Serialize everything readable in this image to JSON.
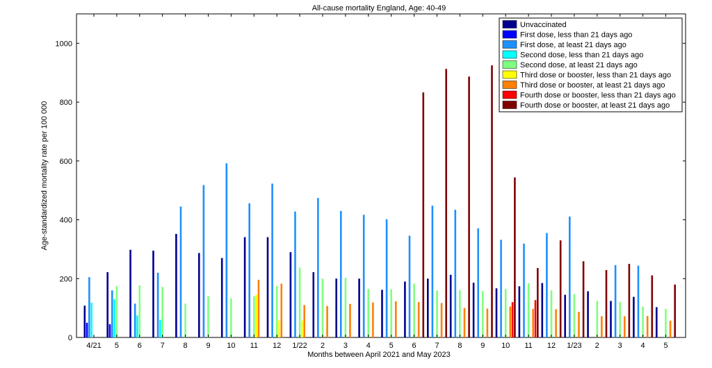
{
  "chart_data": {
    "type": "bar",
    "title": "All-cause mortality England, Age: 40-49",
    "xlabel": "Months between April 2021 and May 2023",
    "ylabel": "Age-standardized mortality rate per 100 000",
    "ylim": [
      0,
      1100
    ],
    "yticks": [
      0,
      200,
      400,
      600,
      800,
      1000
    ],
    "grid": false,
    "legend_position": "top-right",
    "categories": [
      "4/21",
      "5",
      "6",
      "7",
      "8",
      "9",
      "10",
      "11",
      "12",
      "1/22",
      "2",
      "3",
      "4",
      "5",
      "6",
      "7",
      "8",
      "9",
      "10",
      "11",
      "12",
      "1/23",
      "2",
      "3",
      "4",
      "5"
    ],
    "series": [
      {
        "name": "Unvaccinated",
        "color": "#00008f",
        "values": [
          108,
          222,
          298,
          295,
          352,
          287,
          270,
          341,
          341,
          290,
          222,
          200,
          200,
          162,
          190,
          200,
          213,
          186,
          167,
          174,
          185,
          145,
          157,
          124,
          138,
          103
        ]
      },
      {
        "name": "First dose, less than 21 days ago",
        "color": "#0000ff",
        "values": [
          50,
          45,
          null,
          null,
          null,
          null,
          null,
          null,
          null,
          null,
          null,
          null,
          null,
          null,
          null,
          null,
          null,
          null,
          null,
          null,
          null,
          null,
          null,
          null,
          null,
          null
        ]
      },
      {
        "name": "First dose, at least 21 days ago",
        "color": "#1e90ff",
        "values": [
          205,
          160,
          115,
          220,
          445,
          518,
          592,
          456,
          523,
          428,
          474,
          430,
          417,
          402,
          346,
          448,
          434,
          371,
          332,
          319,
          355,
          411,
          null,
          246,
          244,
          null
        ]
      },
      {
        "name": "Second dose, less than 21 days ago",
        "color": "#00ffff",
        "values": [
          118,
          130,
          75,
          60,
          null,
          null,
          null,
          null,
          null,
          null,
          null,
          null,
          null,
          null,
          null,
          null,
          null,
          null,
          null,
          null,
          null,
          null,
          null,
          null,
          null,
          null
        ]
      },
      {
        "name": "Second dose, at least 21 days ago",
        "color": "#7fff7f",
        "values": [
          null,
          175,
          177,
          172,
          115,
          140,
          133,
          140,
          175,
          238,
          200,
          203,
          165,
          164,
          183,
          160,
          161,
          158,
          165,
          184,
          160,
          147,
          124,
          121,
          105,
          97
        ]
      },
      {
        "name": "Third dose or booster, less than 21 days ago",
        "color": "#ffff00",
        "values": [
          null,
          null,
          null,
          null,
          null,
          null,
          null,
          145,
          58,
          58,
          null,
          null,
          null,
          null,
          null,
          null,
          null,
          null,
          null,
          null,
          null,
          null,
          null,
          null,
          null,
          null
        ]
      },
      {
        "name": "Third dose or booster, at least 21 days ago",
        "color": "#ff7f00",
        "values": [
          null,
          null,
          null,
          null,
          null,
          null,
          null,
          196,
          183,
          110,
          107,
          114,
          119,
          123,
          120,
          117,
          100,
          98,
          105,
          97,
          96,
          87,
          72,
          72,
          73,
          57
        ]
      },
      {
        "name": "Fourth dose or booster, less than 21 days ago",
        "color": "#ff0000",
        "values": [
          null,
          null,
          null,
          null,
          null,
          null,
          null,
          null,
          null,
          null,
          null,
          null,
          null,
          null,
          null,
          null,
          null,
          null,
          120,
          127,
          null,
          null,
          null,
          null,
          null,
          null
        ]
      },
      {
        "name": "Fourth dose or booster, at least 21 days ago",
        "color": "#800000",
        "values": [
          null,
          null,
          null,
          null,
          null,
          null,
          null,
          null,
          null,
          null,
          null,
          null,
          null,
          null,
          833,
          913,
          887,
          925,
          544,
          236,
          330,
          259,
          229,
          250,
          211,
          180
        ]
      }
    ]
  }
}
